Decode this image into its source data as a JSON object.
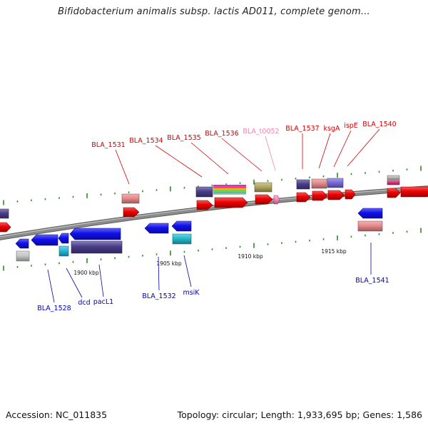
{
  "title": "Bifidobacterium animalis subsp. lactis AD011, complete genom...",
  "footer": {
    "accession": "Accession: NC_011835",
    "summary": "Topology: circular; Length: 1,933,695 bp; Genes: 1,586"
  },
  "colors": {
    "forward_label": "#d40000",
    "reverse_label": "#0000aa",
    "trna_label": "#ee88aa",
    "backbone": "#8c8c8c",
    "tick": "#2a8a2a"
  },
  "scale_labels": [
    "1900 kbp",
    "1905 kbp",
    "1910 kbp",
    "1915 kbp"
  ],
  "gene_labels": {
    "forward": [
      "BLA_1531",
      "BLA_1534",
      "BLA_1535",
      "BLA_1536",
      "BLA_1537",
      "ksgA",
      "ispE",
      "BLA_1540"
    ],
    "trna": [
      "BLA_t0052"
    ],
    "reverse": [
      "BLA_1528",
      "dcd",
      "pacL1",
      "BLA_1532",
      "msiK",
      "BLA_1541"
    ]
  }
}
